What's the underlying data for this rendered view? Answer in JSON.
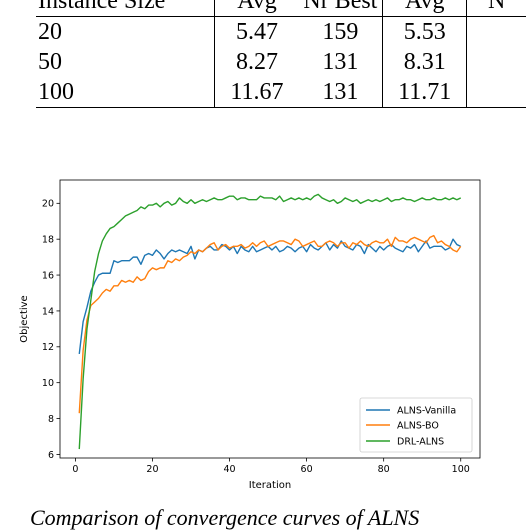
{
  "table": {
    "headers": [
      "Instance Size",
      "Avg",
      "Nr Best",
      "Avg",
      "N"
    ],
    "rows": [
      [
        "20",
        "5.47",
        "159",
        "5.53",
        ""
      ],
      [
        "50",
        "8.27",
        "131",
        "8.31",
        ""
      ],
      [
        "100",
        "11.67",
        "131",
        "11.71",
        ""
      ]
    ]
  },
  "caption": "Comparison of convergence curves of ALNS",
  "chart_data": {
    "type": "line",
    "title": "",
    "xlabel": "Iteration",
    "ylabel": "Objective",
    "xlim": [
      -4,
      105
    ],
    "ylim": [
      5.8,
      21.3
    ],
    "xticks": [
      0,
      20,
      40,
      60,
      80,
      100
    ],
    "yticks": [
      6,
      8,
      10,
      12,
      14,
      16,
      18,
      20
    ],
    "grid": false,
    "legend_position": "bottom-right",
    "x": [
      1,
      2,
      3,
      4,
      5,
      6,
      7,
      8,
      9,
      10,
      11,
      12,
      13,
      14,
      15,
      16,
      17,
      18,
      19,
      20,
      21,
      22,
      23,
      24,
      25,
      26,
      27,
      28,
      29,
      30,
      31,
      32,
      33,
      34,
      35,
      36,
      37,
      38,
      39,
      40,
      41,
      42,
      43,
      44,
      45,
      46,
      47,
      48,
      49,
      50,
      51,
      52,
      53,
      54,
      55,
      56,
      57,
      58,
      59,
      60,
      61,
      62,
      63,
      64,
      65,
      66,
      67,
      68,
      69,
      70,
      71,
      72,
      73,
      74,
      75,
      76,
      77,
      78,
      79,
      80,
      81,
      82,
      83,
      84,
      85,
      86,
      87,
      88,
      89,
      90,
      91,
      92,
      93,
      94,
      95,
      96,
      97,
      98,
      99,
      100
    ],
    "series": [
      {
        "name": "ALNS-Vanilla",
        "color": "#1f77b4",
        "values": [
          11.6,
          13.4,
          14.2,
          15.1,
          15.6,
          16.0,
          16.1,
          16.1,
          16.1,
          16.8,
          16.7,
          16.8,
          16.8,
          16.8,
          17.0,
          17.0,
          16.6,
          17.1,
          17.2,
          17.1,
          17.4,
          17.2,
          16.9,
          17.2,
          17.4,
          17.3,
          17.4,
          17.3,
          17.2,
          17.6,
          16.9,
          17.4,
          17.3,
          17.5,
          17.6,
          17.4,
          17.4,
          17.7,
          17.6,
          17.4,
          17.6,
          17.2,
          17.6,
          17.4,
          17.3,
          17.6,
          17.3,
          17.4,
          17.5,
          17.6,
          17.4,
          17.6,
          17.3,
          17.4,
          17.6,
          17.5,
          17.3,
          17.5,
          17.6,
          17.3,
          17.7,
          17.5,
          17.4,
          17.6,
          17.8,
          17.4,
          17.7,
          17.5,
          17.9,
          17.6,
          17.5,
          17.4,
          17.7,
          17.6,
          17.2,
          17.7,
          17.5,
          17.3,
          17.6,
          17.4,
          17.6,
          17.7,
          17.5,
          17.4,
          17.3,
          17.6,
          17.5,
          17.7,
          17.3,
          17.6,
          17.9,
          17.5,
          17.6,
          17.6,
          17.6,
          17.4,
          17.5,
          18.0,
          17.7,
          17.6
        ]
      },
      {
        "name": "ALNS-BO",
        "color": "#ff7f0e",
        "values": [
          8.3,
          11.8,
          13.5,
          14.3,
          14.5,
          14.7,
          15.0,
          15.2,
          15.1,
          15.4,
          15.4,
          15.7,
          15.6,
          15.7,
          15.6,
          15.9,
          15.7,
          15.8,
          16.2,
          16.4,
          16.3,
          16.4,
          16.4,
          16.8,
          16.7,
          16.9,
          16.8,
          17.0,
          17.1,
          17.3,
          17.2,
          17.4,
          17.3,
          17.5,
          17.7,
          17.8,
          17.4,
          17.6,
          17.7,
          17.5,
          17.6,
          17.6,
          17.7,
          17.5,
          17.6,
          17.8,
          17.6,
          17.8,
          17.9,
          17.6,
          17.7,
          17.8,
          17.9,
          17.9,
          17.8,
          17.7,
          18.0,
          17.9,
          17.6,
          17.7,
          17.8,
          17.9,
          17.6,
          17.6,
          17.8,
          17.9,
          17.8,
          17.6,
          17.8,
          17.8,
          17.5,
          17.8,
          17.7,
          17.9,
          17.7,
          17.6,
          17.8,
          17.9,
          17.8,
          17.8,
          18.0,
          17.6,
          18.1,
          17.9,
          17.9,
          17.8,
          18.0,
          18.1,
          18.0,
          17.9,
          17.8,
          18.1,
          18.2,
          17.8,
          17.9,
          17.7,
          17.6,
          17.4,
          17.3,
          17.6
        ]
      },
      {
        "name": "DRL-ALNS",
        "color": "#2ca02c",
        "values": [
          6.3,
          10.2,
          13.0,
          14.6,
          16.2,
          17.2,
          17.9,
          18.3,
          18.6,
          18.7,
          18.9,
          19.1,
          19.3,
          19.4,
          19.5,
          19.6,
          19.8,
          19.7,
          19.9,
          19.9,
          20.0,
          19.8,
          20.0,
          20.1,
          19.9,
          20.0,
          20.3,
          20.1,
          20.0,
          20.2,
          20.0,
          20.1,
          20.2,
          20.1,
          20.2,
          20.3,
          20.2,
          20.2,
          20.3,
          20.4,
          20.4,
          20.2,
          20.3,
          20.3,
          20.2,
          20.2,
          20.2,
          20.4,
          20.3,
          20.3,
          20.3,
          20.2,
          20.4,
          20.1,
          20.2,
          20.3,
          20.2,
          20.3,
          20.2,
          20.3,
          20.2,
          20.4,
          20.5,
          20.3,
          20.2,
          20.1,
          20.2,
          20.0,
          20.1,
          20.3,
          20.2,
          20.1,
          20.2,
          20.0,
          20.1,
          20.2,
          20.1,
          20.2,
          20.1,
          20.2,
          20.3,
          20.1,
          20.2,
          20.2,
          20.3,
          20.2,
          20.2,
          20.1,
          20.2,
          20.3,
          20.2,
          20.2,
          20.3,
          20.2,
          20.2,
          20.3,
          20.2,
          20.3,
          20.2,
          20.3
        ]
      }
    ]
  }
}
